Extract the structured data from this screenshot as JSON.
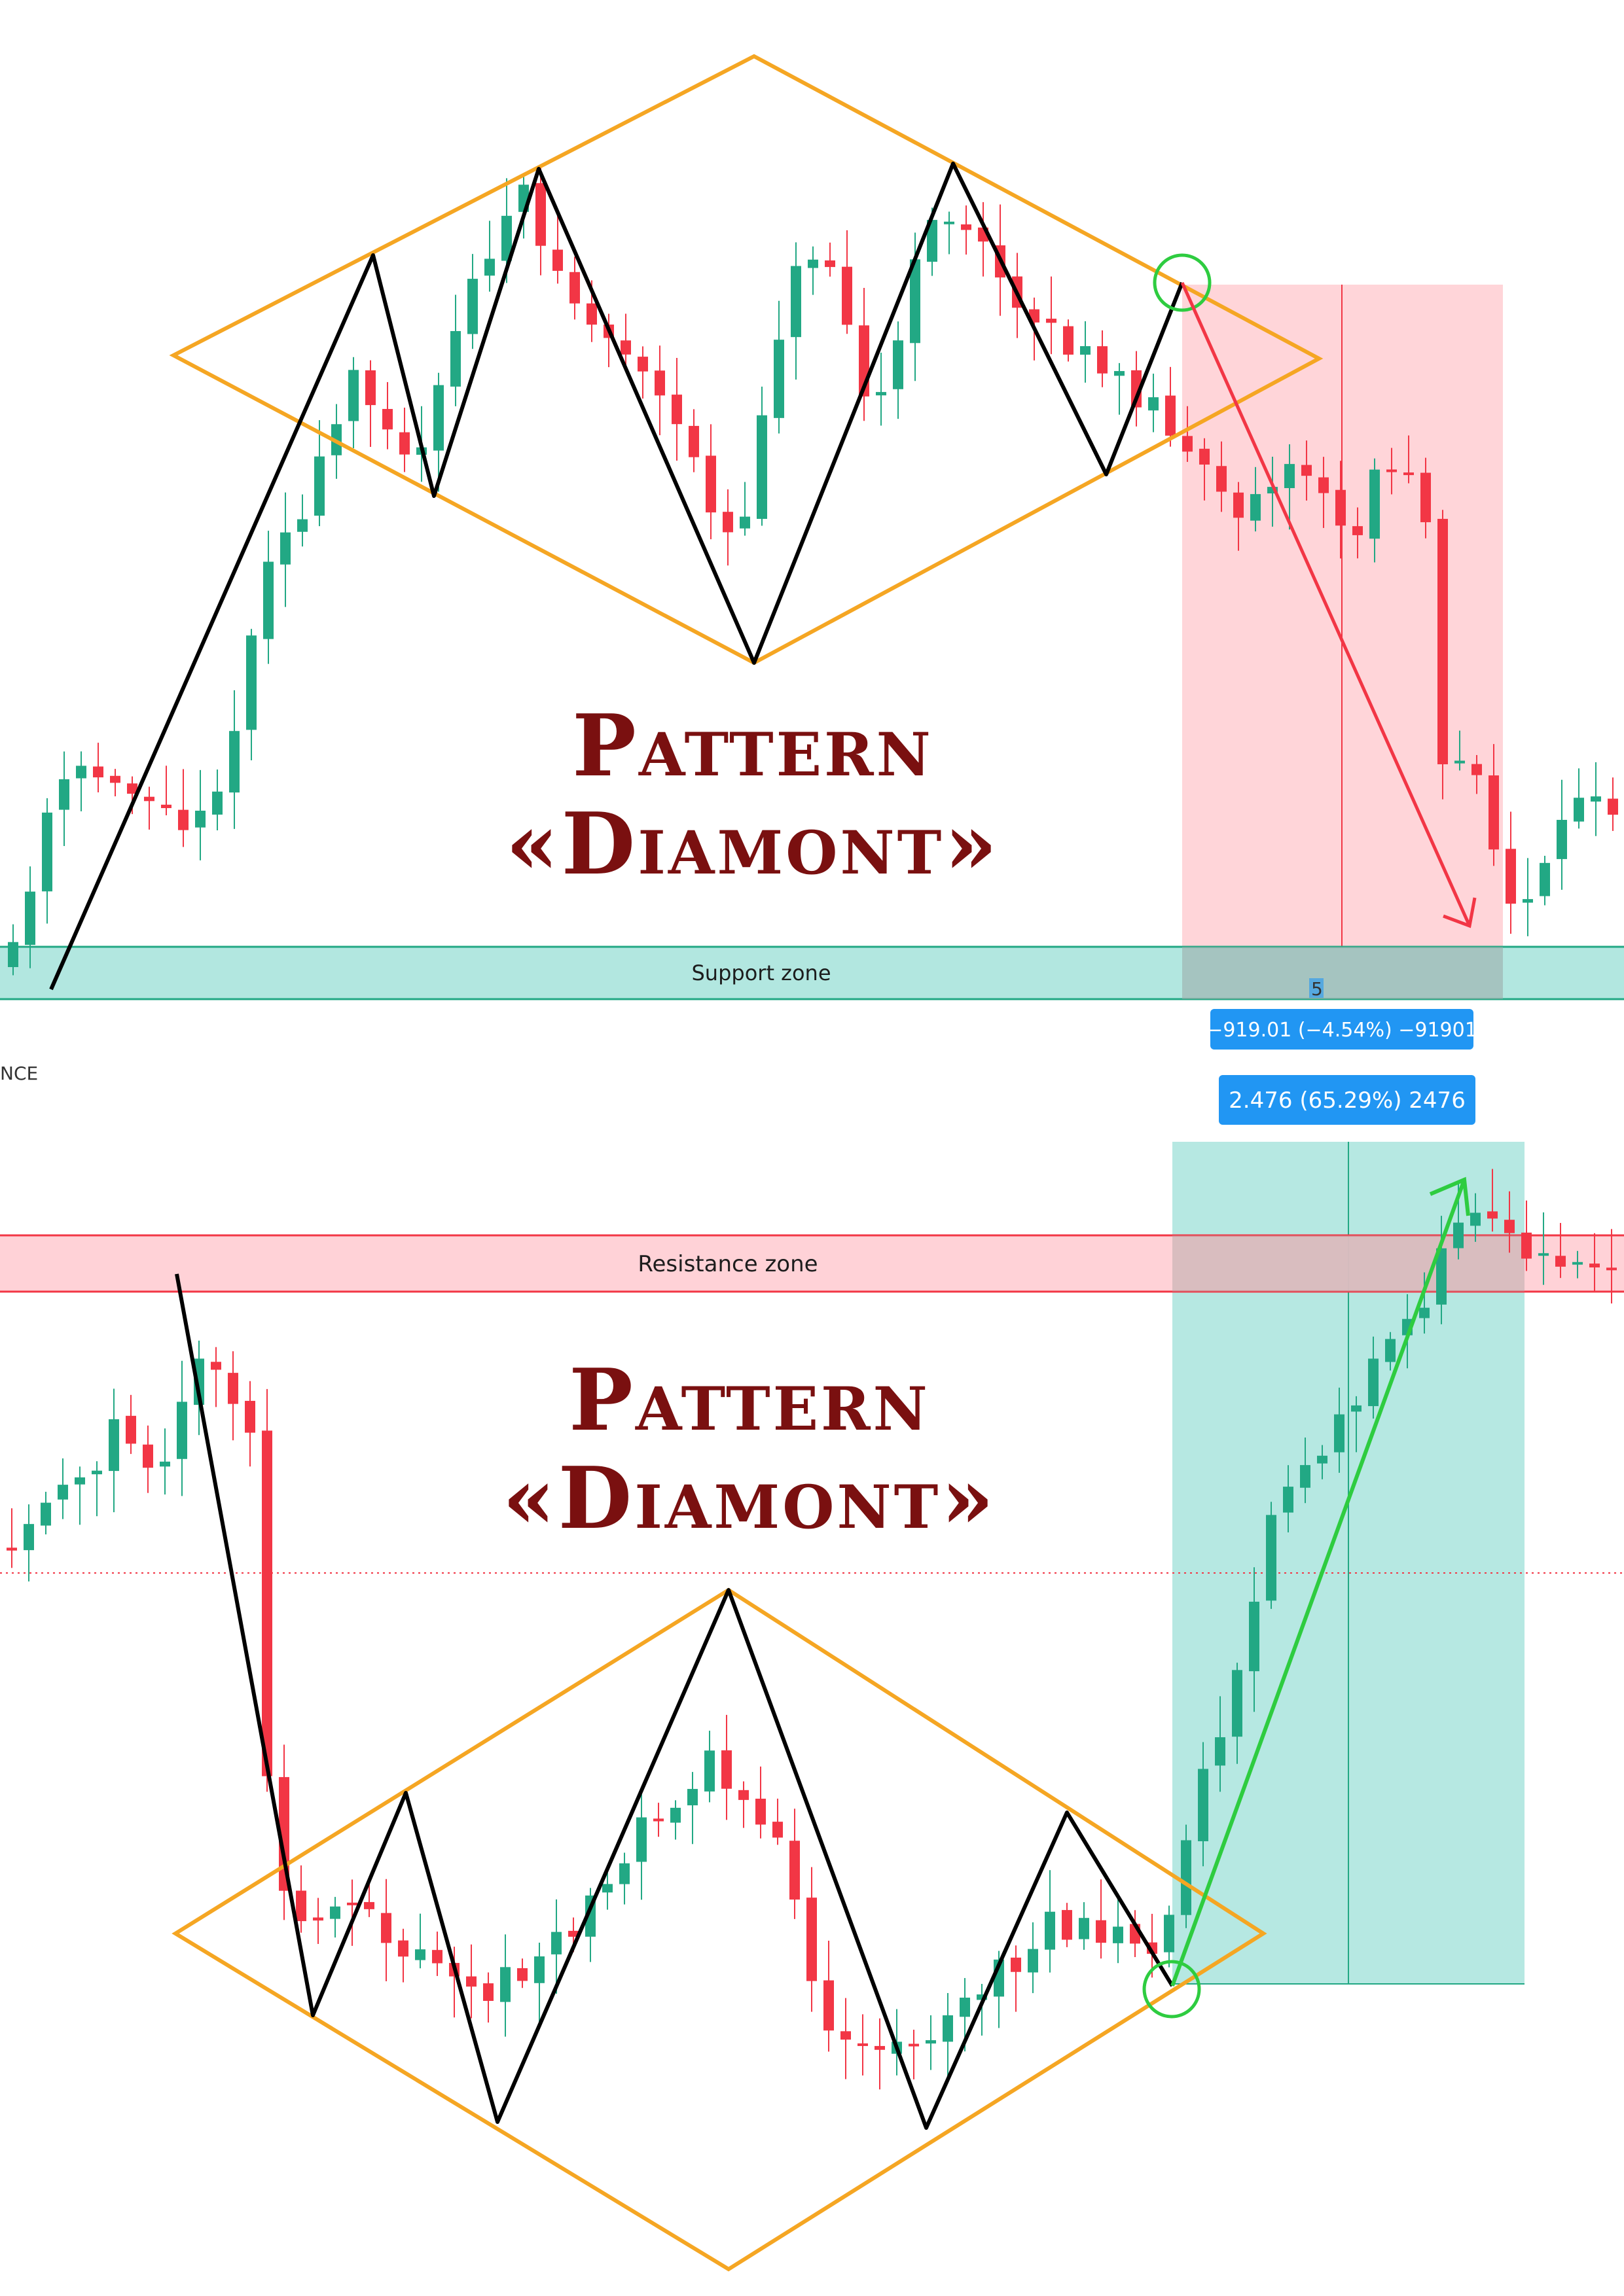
{
  "charts": [
    {
      "title_line1": "Pattern",
      "title_line2": "«Diamont»",
      "zone_label": "Support zone",
      "zone_type": "support",
      "measure_label": "−919.01 (−4.54%) −91901",
      "bars_label": "5",
      "axis_fragment": "NCE",
      "breakout_direction": "down"
    },
    {
      "title_line1": "Pattern",
      "title_line2": "«Diamont»",
      "zone_label": "Resistance zone",
      "zone_type": "resistance",
      "measure_label": "2.476 (65.29%) 2476",
      "breakout_direction": "up"
    }
  ],
  "colors": {
    "bull": "#22a884",
    "bear": "#f23645",
    "diamond": "#f5a623",
    "zigzag": "#000000",
    "support_zone": "#b2e7e0",
    "resistance_zone": "#ffd0d5",
    "title": "#7a1010",
    "tag": "#2196f3",
    "breakout_circle": "#2ecc40",
    "target_arrow_down": "#f23645",
    "target_arrow_up": "#2ecc40"
  },
  "chart_data": [
    {
      "type": "candlestick",
      "title": "Pattern «Diamont»",
      "pattern": "diamond top",
      "annotations": [
        "Support zone",
        "−919.01 (−4.54%) −91901",
        "5"
      ],
      "ohlc_shape": "uptrend → diamond → breakdown → drop into support zone"
    },
    {
      "type": "candlestick",
      "title": "Pattern «Diamont»",
      "pattern": "diamond bottom",
      "annotations": [
        "Resistance zone",
        "2.476 (65.29%) 2476"
      ],
      "ohlc_shape": "drop → diamond → breakout → rally into resistance zone"
    }
  ]
}
